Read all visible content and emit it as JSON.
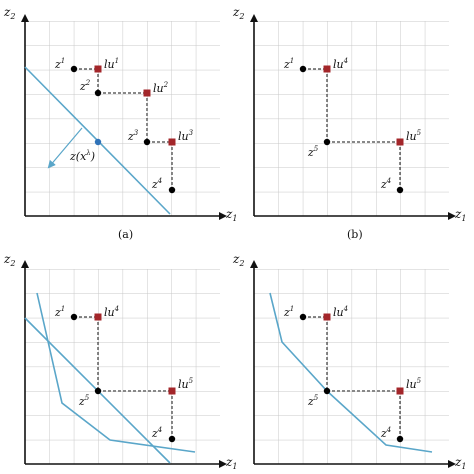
{
  "colors": {
    "grid": "#c8c8c8",
    "axis": "#111111",
    "point": "#000000",
    "local_upper": "#a3262a",
    "blue_line": "#5aa6c9",
    "projection": "#2f72b8"
  },
  "panels": [
    {
      "id": "a",
      "caption": "(a)",
      "ylabel_base": "z",
      "ylabel_sub": "2",
      "xlabel_base": "z",
      "xlabel_sub": "1",
      "z_points": [
        {
          "base": "z",
          "sup": "1"
        },
        {
          "base": "z",
          "sup": "2"
        },
        {
          "base": "z",
          "sup": "3"
        },
        {
          "base": "z",
          "sup": "4"
        }
      ],
      "lu_points": [
        {
          "base": "lu",
          "sup": "1"
        },
        {
          "base": "lu",
          "sup": "2"
        },
        {
          "base": "lu",
          "sup": "3"
        }
      ],
      "projection_label": {
        "text": "z(x",
        "sup": "λ",
        "close": ")"
      }
    },
    {
      "id": "b",
      "caption": "(b)",
      "ylabel_base": "z",
      "ylabel_sub": "2",
      "xlabel_base": "z",
      "xlabel_sub": "1",
      "z_points": [
        {
          "base": "z",
          "sup": "1"
        },
        {
          "base": "z",
          "sup": "5"
        },
        {
          "base": "z",
          "sup": "4"
        }
      ],
      "lu_points": [
        {
          "base": "lu",
          "sup": "4"
        },
        {
          "base": "lu",
          "sup": "5"
        }
      ]
    },
    {
      "id": "c",
      "caption": "",
      "ylabel_base": "z",
      "ylabel_sub": "2",
      "xlabel_base": "z",
      "xlabel_sub": "1",
      "z_points": [
        {
          "base": "z",
          "sup": "1"
        },
        {
          "base": "z",
          "sup": "5"
        },
        {
          "base": "z",
          "sup": "4"
        }
      ],
      "lu_points": [
        {
          "base": "lu",
          "sup": "4"
        },
        {
          "base": "lu",
          "sup": "5"
        }
      ]
    },
    {
      "id": "d",
      "caption": "",
      "ylabel_base": "z",
      "ylabel_sub": "2",
      "xlabel_base": "z",
      "xlabel_sub": "1",
      "z_points": [
        {
          "base": "z",
          "sup": "1"
        },
        {
          "base": "z",
          "sup": "5"
        },
        {
          "base": "z",
          "sup": "4"
        }
      ],
      "lu_points": [
        {
          "base": "lu",
          "sup": "4"
        },
        {
          "base": "lu",
          "sup": "5"
        }
      ]
    }
  ]
}
